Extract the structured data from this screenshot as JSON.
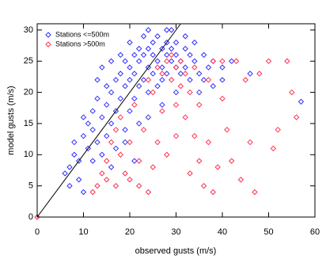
{
  "chart_data": {
    "type": "scatter",
    "xlabel": "observed gusts (m/s)",
    "ylabel": "model gusts (m/s)",
    "xlim": [
      0,
      60
    ],
    "ylim": [
      0,
      31
    ],
    "xticks": [
      0,
      10,
      20,
      30,
      40,
      50,
      60
    ],
    "yticks": [
      0,
      5,
      10,
      15,
      20,
      25,
      30
    ],
    "identity_line": true,
    "legend": "upper left",
    "marker": "diamond",
    "series": [
      {
        "name": "Stations <=500m",
        "color": "#3030ff",
        "x": [
          6,
          7,
          7,
          8,
          8,
          9,
          9,
          10,
          10,
          10,
          11,
          11,
          12,
          12,
          12,
          13,
          13,
          13,
          14,
          14,
          14,
          15,
          15,
          15,
          16,
          16,
          16,
          16,
          17,
          17,
          17,
          18,
          18,
          18,
          19,
          19,
          19,
          20,
          20,
          20,
          20,
          21,
          21,
          21,
          22,
          22,
          22,
          22,
          23,
          23,
          23,
          24,
          24,
          24,
          25,
          25,
          25,
          26,
          26,
          26,
          27,
          27,
          27,
          28,
          28,
          28,
          29,
          29,
          29,
          30,
          30,
          30,
          31,
          31,
          32,
          32,
          33,
          33,
          34,
          34,
          35,
          35,
          36,
          36,
          37,
          38,
          38,
          40,
          40,
          42,
          46,
          57,
          28,
          32,
          24,
          19,
          21,
          24,
          27,
          30
        ],
        "values": [
          7,
          5,
          8,
          10,
          12,
          6,
          9,
          13,
          16,
          4,
          11,
          15,
          14,
          17,
          9,
          12,
          19,
          22,
          16,
          10,
          24,
          18,
          13,
          21,
          20,
          15,
          25,
          8,
          17,
          22,
          11,
          19,
          23,
          26,
          14,
          21,
          25,
          17,
          22,
          24,
          28,
          19,
          23,
          26,
          21,
          25,
          27,
          15,
          22,
          26,
          29,
          20,
          24,
          27,
          23,
          26,
          28,
          21,
          25,
          29,
          24,
          27,
          22,
          26,
          28,
          23,
          25,
          27,
          30,
          24,
          26,
          28,
          25,
          23,
          27,
          24,
          26,
          22,
          25,
          28,
          23,
          20,
          26,
          22,
          24,
          21,
          25,
          22,
          24,
          25,
          23,
          18.5,
          30,
          29,
          30,
          12,
          9,
          16,
          18,
          20
        ]
      },
      {
        "name": "Stations >500m",
        "color": "#ff3050",
        "x": [
          0,
          12,
          13,
          14,
          15,
          15,
          16,
          17,
          17,
          18,
          18,
          19,
          20,
          20,
          21,
          22,
          22,
          23,
          24,
          24,
          25,
          25,
          26,
          26,
          27,
          27,
          28,
          28,
          29,
          29,
          30,
          30,
          30,
          31,
          31,
          32,
          32,
          33,
          33,
          34,
          34,
          35,
          35,
          36,
          37,
          37,
          38,
          38,
          39,
          40,
          40,
          41,
          42,
          43,
          44,
          45,
          46,
          47,
          48,
          50,
          51,
          52,
          54,
          55,
          56
        ],
        "values": [
          0,
          4,
          5,
          7,
          9,
          6,
          12,
          5,
          14,
          10,
          16,
          7,
          6,
          12,
          18,
          5,
          9,
          14,
          22,
          4,
          20,
          8,
          12,
          24,
          17,
          23,
          25,
          10,
          22,
          26,
          18,
          24,
          13,
          21,
          25,
          16,
          23,
          7,
          20,
          24,
          13,
          18,
          9,
          5,
          22,
          12,
          25,
          4,
          8,
          19,
          25,
          14,
          9,
          25,
          6,
          22,
          12,
          4,
          23,
          25,
          11,
          14,
          25,
          20,
          16
        ]
      }
    ]
  }
}
